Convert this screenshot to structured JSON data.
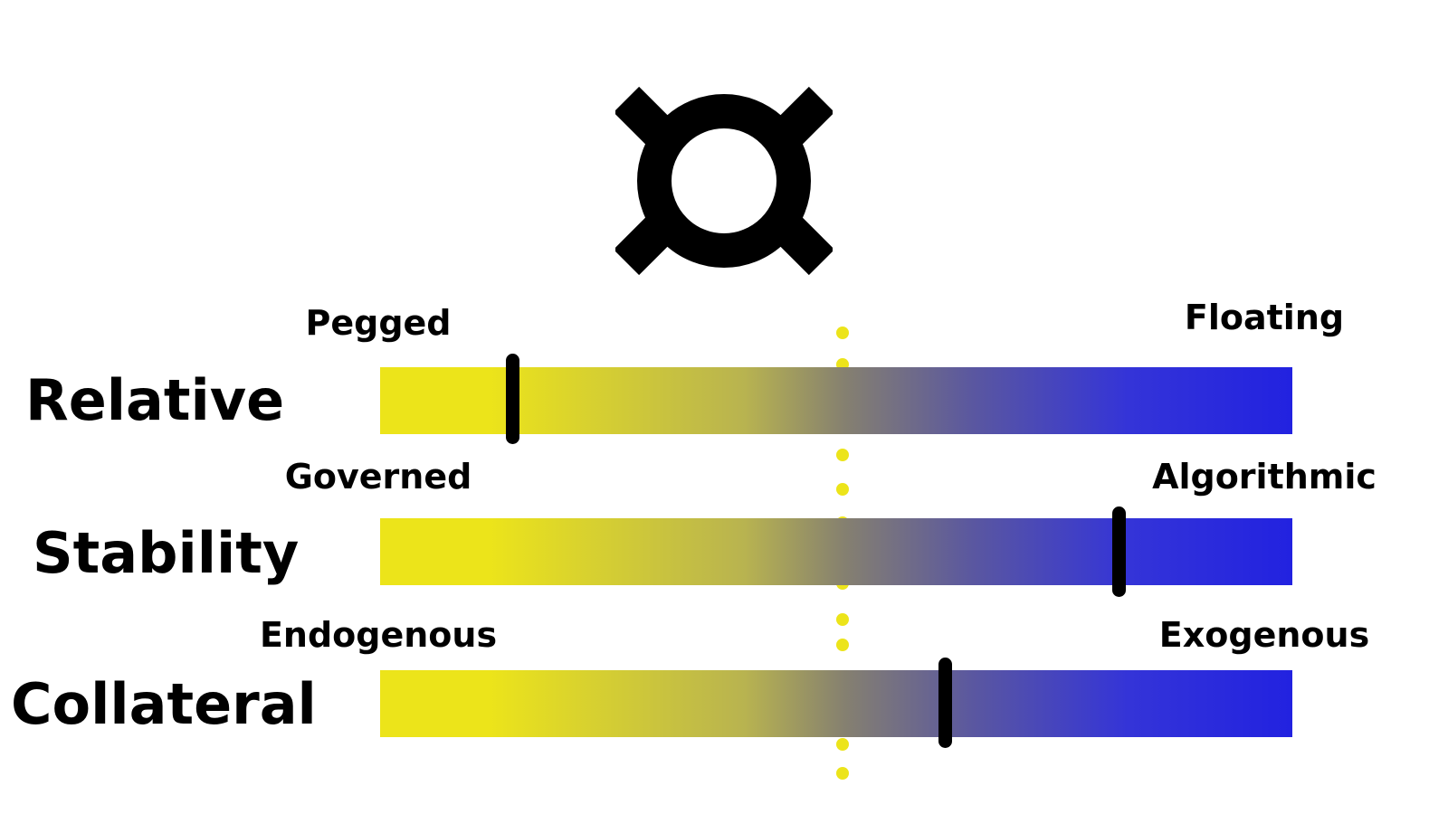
{
  "symbol": {
    "icon": "currency-sign-icon"
  },
  "rows": [
    {
      "label": "Relative",
      "left_label": "Pegged",
      "right_label": "Floating",
      "marker_fraction": 0.145
    },
    {
      "label": "Stability",
      "left_label": "Governed",
      "right_label": "Algorithmic",
      "marker_fraction": 0.81
    },
    {
      "label": "Collateral",
      "left_label": "Endogenous",
      "right_label": "Exogenous",
      "marker_fraction": 0.62
    }
  ],
  "colors": {
    "gradient_start": "#ece41a",
    "gradient_end": "#2222e0",
    "center_line": "#ece41a",
    "marker": "#000000"
  }
}
